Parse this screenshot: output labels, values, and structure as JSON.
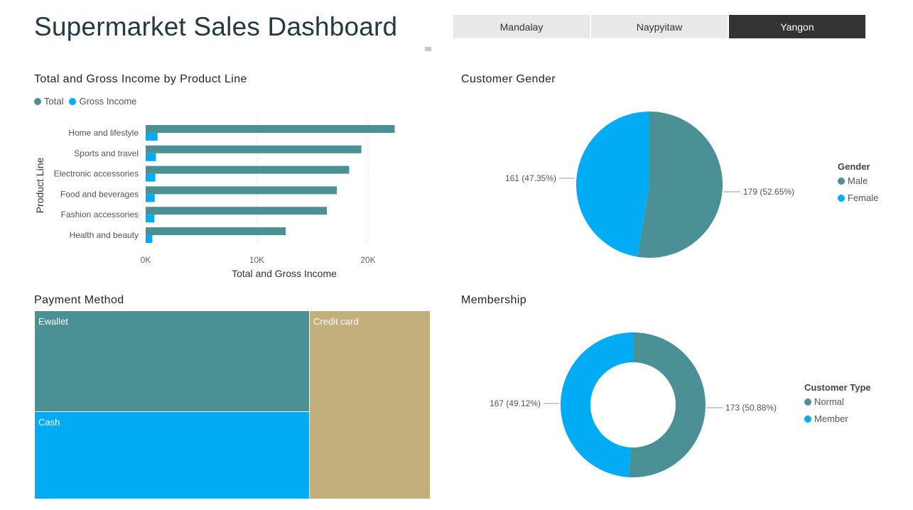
{
  "title": "Supermarket Sales Dashboard",
  "slicer": {
    "options": [
      "Mandalay",
      "Naypyitaw",
      "Yangon"
    ],
    "selected": "Yangon"
  },
  "colors": {
    "teal": "#4a9094",
    "blue": "#01acf5",
    "tan": "#c3af7c",
    "dark": "#333333"
  },
  "income_chart": {
    "title": "Total and Gross Income by Product Line",
    "legend": [
      "Total",
      "Gross Income"
    ],
    "ylabel": "Product Line",
    "xlabel": "Total and Gross Income",
    "ticks": [
      "0K",
      "10K",
      "20K"
    ]
  },
  "gender_chart": {
    "title": "Customer Gender",
    "legend_title": "Gender",
    "legend": [
      "Male",
      "Female"
    ],
    "labels": [
      "179 (52.65%)",
      "161 (47.35%)"
    ]
  },
  "payment_chart": {
    "title": "Payment Method",
    "labels": [
      "Ewallet",
      "Cash",
      "Credit card"
    ]
  },
  "membership_chart": {
    "title": "Membership",
    "legend_title": "Customer Type",
    "legend": [
      "Normal",
      "Member"
    ],
    "labels": [
      "173 (50.88%)",
      "167 (49.12%)"
    ]
  },
  "chart_data": [
    {
      "type": "bar",
      "title": "Total and Gross Income by Product Line",
      "xlabel": "Total and Gross Income",
      "ylabel": "Product Line",
      "categories": [
        "Home and lifestyle",
        "Sports and travel",
        "Electronic accessories",
        "Food and beverages",
        "Fashion accessories",
        "Health and beauty"
      ],
      "series": [
        {
          "name": "Total",
          "values": [
            22400,
            19400,
            18300,
            17200,
            16300,
            12600
          ]
        },
        {
          "name": "Gross Income",
          "values": [
            1070,
            920,
            870,
            820,
            780,
            600
          ]
        }
      ],
      "xlim": [
        0,
        23000
      ],
      "legend": "top-left",
      "grid": true
    },
    {
      "type": "pie",
      "title": "Customer Gender",
      "categories": [
        "Male",
        "Female"
      ],
      "values": [
        179,
        161
      ],
      "percent": [
        52.65,
        47.35
      ],
      "legend": "right"
    },
    {
      "type": "heatmap",
      "title": "Payment Method",
      "categories": [
        "Ewallet",
        "Cash",
        "Credit card"
      ],
      "values": [
        126,
        110,
        104
      ]
    },
    {
      "type": "pie",
      "title": "Membership",
      "categories": [
        "Normal",
        "Member"
      ],
      "values": [
        173,
        167
      ],
      "percent": [
        50.88,
        49.12
      ],
      "legend": "right"
    }
  ]
}
